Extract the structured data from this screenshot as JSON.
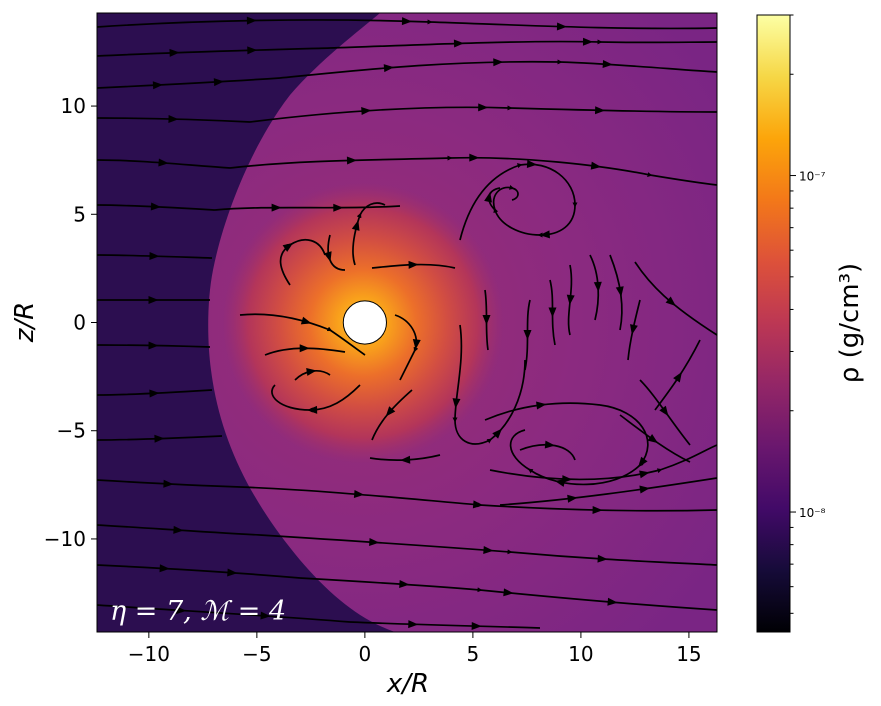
{
  "chart_data": {
    "type": "heatmap",
    "subtype": "density colormap with velocity streamlines",
    "xlabel": "x/R",
    "ylabel": "z/R",
    "xlim": [
      -12.4,
      16.3
    ],
    "ylim": [
      -14.3,
      14.3
    ],
    "x_ticks": [
      -10,
      -5,
      0,
      5,
      10,
      15
    ],
    "x_tick_labels": [
      "−10",
      "−5",
      "0",
      "5",
      "10",
      "15"
    ],
    "y_ticks": [
      10,
      5,
      0,
      -5,
      -10
    ],
    "y_tick_labels": [
      "10",
      "5",
      "0",
      "−5",
      "−10"
    ],
    "annotation": "η = 7, ℳ = 4",
    "colormap": "inferno",
    "colorbar": {
      "label": "ρ (g/cm³)",
      "scale": "log",
      "range": [
        4.4e-09,
        3e-07
      ],
      "major_ticks": [
        1e-08,
        1e-07
      ],
      "major_tick_labels": [
        "10⁻⁸",
        "10⁻⁷"
      ]
    },
    "star": {
      "center": [
        0,
        0
      ],
      "radius": 1
    },
    "features": {
      "shock_front_x_at_z0": -7.2,
      "upstream_density": 1.5e-08,
      "peak_density_near_star": 1.5e-07,
      "post_shock_density": 3.5e-08
    },
    "colors": {
      "upstream": "#2c0e50",
      "post_shock": "#8c2981",
      "peak": "#fcba2b",
      "streamlines": "#000000",
      "star": "#ffffff"
    }
  }
}
